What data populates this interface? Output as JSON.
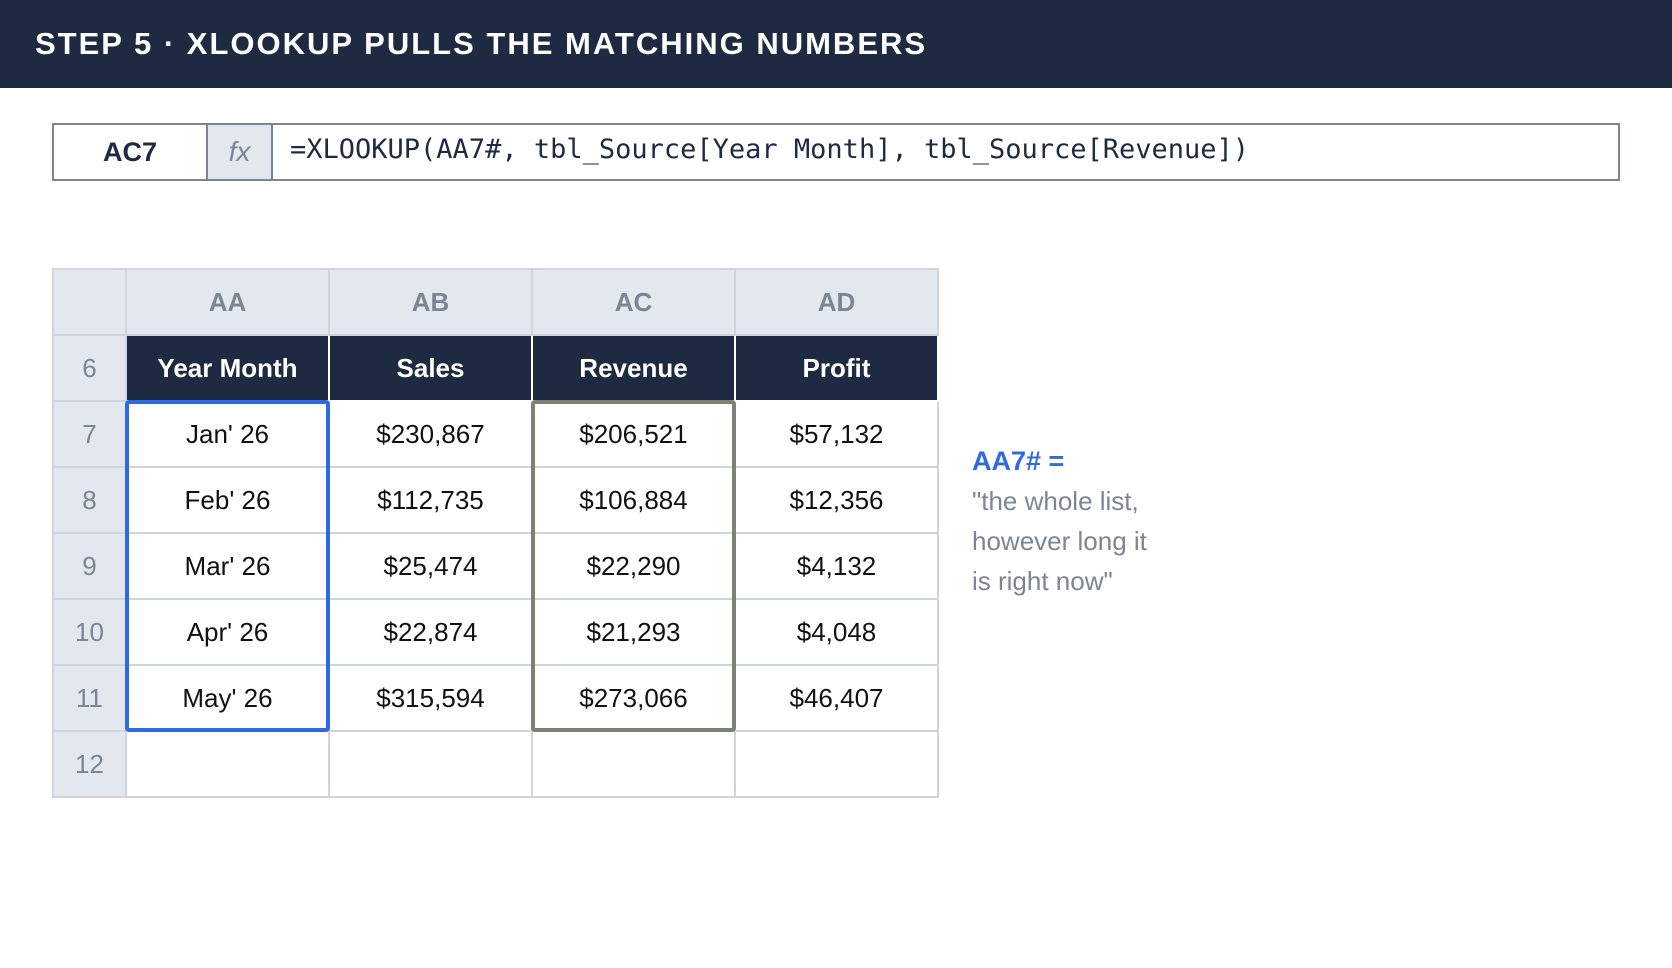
{
  "header": {
    "title": "STEP 5 · XLOOKUP PULLS THE MATCHING NUMBERS"
  },
  "formula_bar": {
    "cell": "AC7",
    "fx": "fx",
    "formula": "=XLOOKUP(AA7#, tbl_Source[Year Month], tbl_Source[Revenue])"
  },
  "sheet": {
    "column_letters": [
      "AA",
      "AB",
      "AC",
      "AD"
    ],
    "row_numbers": [
      "6",
      "7",
      "8",
      "9",
      "10",
      "11",
      "12"
    ]
  },
  "table": {
    "headers": [
      "Year Month",
      "Sales",
      "Revenue",
      "Profit"
    ],
    "rows": [
      [
        "Jan' 26",
        "$230,867",
        "$206,521",
        "$57,132"
      ],
      [
        "Feb' 26",
        "$112,735",
        "$106,884",
        "$12,356"
      ],
      [
        "Mar' 26",
        "$25,474",
        "$22,290",
        "$4,132"
      ],
      [
        "Apr' 26",
        "$22,874",
        "$21,293",
        "$4,048"
      ],
      [
        "May' 26",
        "$315,594",
        "$273,066",
        "$46,407"
      ]
    ]
  },
  "annotation": {
    "title": "AA7# =",
    "lines": [
      "\"the whole list,",
      "however long it",
      "is right now\""
    ]
  }
}
